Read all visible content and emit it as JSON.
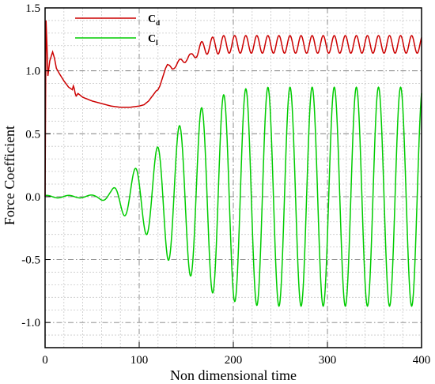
{
  "chart_data": {
    "type": "line",
    "title": "",
    "xlabel": "Non dimensional time",
    "ylabel": "Force Coefficient",
    "xlim": [
      0,
      400
    ],
    "ylim": [
      -1.2,
      1.5
    ],
    "xticks": [
      "0",
      "100",
      "200",
      "300",
      "400"
    ],
    "yticks": [
      "1.5",
      "1.0",
      "0.5",
      "0.0",
      "-0.5",
      "-1.0"
    ],
    "grid": true,
    "legend_position": "top-left",
    "series": [
      {
        "name": "Cd",
        "name_main": "C",
        "name_sub": "d",
        "color": "#cc0000",
        "x": [
          0,
          1,
          2,
          3,
          5,
          8,
          10,
          12,
          15,
          20,
          25,
          29,
          30,
          31,
          32,
          33,
          35,
          40,
          50,
          60,
          70,
          80,
          90,
          100,
          105,
          110,
          115,
          118,
          120,
          122,
          125,
          128,
          130,
          132,
          135,
          140,
          145,
          150,
          155,
          160,
          165,
          170,
          175,
          180,
          190,
          200,
          220,
          250,
          300,
          350,
          400
        ],
        "y": [
          0.0,
          1.4,
          1.2,
          0.96,
          1.08,
          1.15,
          1.1,
          1.02,
          0.98,
          0.92,
          0.87,
          0.85,
          0.88,
          0.86,
          0.82,
          0.8,
          0.82,
          0.79,
          0.76,
          0.74,
          0.72,
          0.71,
          0.71,
          0.72,
          0.73,
          0.76,
          0.81,
          0.84,
          0.85,
          0.88,
          0.95,
          1.02,
          1.05,
          1.04,
          1.02,
          1.05,
          1.08,
          1.1,
          1.1,
          1.15,
          1.17,
          1.19,
          1.2,
          1.2,
          1.21,
          1.21,
          1.21,
          1.21,
          1.21,
          1.21,
          1.21
        ],
        "oscillation_amplitude": [
          0,
          0,
          0,
          0,
          0,
          0,
          0,
          0,
          0,
          0,
          0,
          0,
          0,
          0,
          0,
          0,
          0,
          0,
          0,
          0,
          0,
          0,
          0,
          0,
          0,
          0,
          0,
          0,
          0,
          0,
          0,
          0,
          0,
          0.005,
          0.01,
          0.02,
          0.025,
          0.03,
          0.035,
          0.045,
          0.055,
          0.06,
          0.065,
          0.07,
          0.07,
          0.07,
          0.07,
          0.07,
          0.07,
          0.07,
          0.07
        ]
      },
      {
        "name": "Cl",
        "name_main": "C",
        "name_sub": "l",
        "color": "#00cc00",
        "oscillation_period": 23.5,
        "oscillation_phase_at_peak": 84,
        "x": [
          0,
          20,
          40,
          55,
          70,
          84,
          100,
          115,
          120,
          130,
          140,
          150,
          165,
          175,
          185,
          200,
          215,
          240,
          280,
          320,
          360,
          400
        ],
        "y": [
          0.0,
          0.0,
          0.0,
          0.0,
          0.0,
          0.0,
          0.0,
          0.0,
          0.0,
          0.0,
          0.0,
          0.0,
          0.0,
          0.0,
          0.0,
          0.0,
          0.0,
          0.0,
          0.0,
          0.0,
          0.0,
          0.0
        ],
        "amplitude": [
          0.01,
          0.01,
          0.01,
          0.015,
          0.05,
          0.15,
          0.25,
          0.35,
          0.4,
          0.5,
          0.55,
          0.6,
          0.7,
          0.75,
          0.8,
          0.83,
          0.86,
          0.87,
          0.87,
          0.87,
          0.87,
          0.87
        ]
      }
    ]
  }
}
